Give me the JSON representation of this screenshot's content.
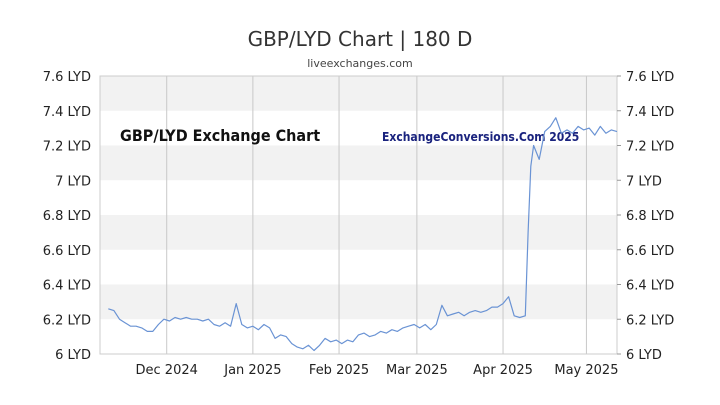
{
  "chart_data": {
    "type": "line",
    "title": "GBP/LYD Chart | 180 D",
    "subtitle": "liveexchanges.com",
    "inner_title": "GBP/LYD Exchange Chart",
    "watermark": "ExchangeConversions.Com 2025",
    "ylim": [
      6.0,
      7.6
    ],
    "y_ticks": [
      {
        "value": 7.6,
        "label": "7.6 LYD"
      },
      {
        "value": 7.4,
        "label": "7.4 LYD"
      },
      {
        "value": 7.2,
        "label": "7.2 LYD"
      },
      {
        "value": 7.0,
        "label": "7 LYD"
      },
      {
        "value": 6.8,
        "label": "6.8 LYD"
      },
      {
        "value": 6.6,
        "label": "6.6 LYD"
      },
      {
        "value": 6.4,
        "label": "6.4 LYD"
      },
      {
        "value": 6.2,
        "label": "6.2 LYD"
      },
      {
        "value": 6.0,
        "label": "6 LYD"
      }
    ],
    "x_range": [
      "2024-11-07",
      "2025-05-12"
    ],
    "x_ticks": [
      {
        "date": "2024-12-01",
        "label": "Dec 2024"
      },
      {
        "date": "2025-01-01",
        "label": "Jan 2025"
      },
      {
        "date": "2025-02-01",
        "label": "Feb 2025"
      },
      {
        "date": "2025-03-01",
        "label": "Mar 2025"
      },
      {
        "date": "2025-04-01",
        "label": "Apr 2025"
      },
      {
        "date": "2025-05-01",
        "label": "May 2025"
      }
    ],
    "grid": true,
    "line_color": "#6a93d4",
    "band_color": "#f2f2f2",
    "series": [
      {
        "values": [
          [
            "2024-11-10",
            6.26
          ],
          [
            "2024-11-12",
            6.25
          ],
          [
            "2024-11-14",
            6.2
          ],
          [
            "2024-11-16",
            6.18
          ],
          [
            "2024-11-18",
            6.16
          ],
          [
            "2024-11-20",
            6.16
          ],
          [
            "2024-11-22",
            6.15
          ],
          [
            "2024-11-24",
            6.13
          ],
          [
            "2024-11-26",
            6.13
          ],
          [
            "2024-11-28",
            6.17
          ],
          [
            "2024-11-30",
            6.2
          ],
          [
            "2024-12-02",
            6.19
          ],
          [
            "2024-12-04",
            6.21
          ],
          [
            "2024-12-06",
            6.2
          ],
          [
            "2024-12-08",
            6.21
          ],
          [
            "2024-12-10",
            6.2
          ],
          [
            "2024-12-12",
            6.2
          ],
          [
            "2024-12-14",
            6.19
          ],
          [
            "2024-12-16",
            6.2
          ],
          [
            "2024-12-18",
            6.17
          ],
          [
            "2024-12-20",
            6.16
          ],
          [
            "2024-12-22",
            6.18
          ],
          [
            "2024-12-24",
            6.16
          ],
          [
            "2024-12-26",
            6.29
          ],
          [
            "2024-12-28",
            6.17
          ],
          [
            "2024-12-30",
            6.15
          ],
          [
            "2025-01-01",
            6.16
          ],
          [
            "2025-01-03",
            6.14
          ],
          [
            "2025-01-05",
            6.17
          ],
          [
            "2025-01-07",
            6.15
          ],
          [
            "2025-01-09",
            6.09
          ],
          [
            "2025-01-11",
            6.11
          ],
          [
            "2025-01-13",
            6.1
          ],
          [
            "2025-01-15",
            6.06
          ],
          [
            "2025-01-17",
            6.04
          ],
          [
            "2025-01-19",
            6.03
          ],
          [
            "2025-01-21",
            6.05
          ],
          [
            "2025-01-23",
            6.02
          ],
          [
            "2025-01-25",
            6.05
          ],
          [
            "2025-01-27",
            6.09
          ],
          [
            "2025-01-29",
            6.07
          ],
          [
            "2025-01-31",
            6.08
          ],
          [
            "2025-02-02",
            6.06
          ],
          [
            "2025-02-04",
            6.08
          ],
          [
            "2025-02-06",
            6.07
          ],
          [
            "2025-02-08",
            6.11
          ],
          [
            "2025-02-10",
            6.12
          ],
          [
            "2025-02-12",
            6.1
          ],
          [
            "2025-02-14",
            6.11
          ],
          [
            "2025-02-16",
            6.13
          ],
          [
            "2025-02-18",
            6.12
          ],
          [
            "2025-02-20",
            6.14
          ],
          [
            "2025-02-22",
            6.13
          ],
          [
            "2025-02-24",
            6.15
          ],
          [
            "2025-02-26",
            6.16
          ],
          [
            "2025-02-28",
            6.17
          ],
          [
            "2025-03-02",
            6.15
          ],
          [
            "2025-03-04",
            6.17
          ],
          [
            "2025-03-06",
            6.14
          ],
          [
            "2025-03-08",
            6.17
          ],
          [
            "2025-03-10",
            6.28
          ],
          [
            "2025-03-12",
            6.22
          ],
          [
            "2025-03-14",
            6.23
          ],
          [
            "2025-03-16",
            6.24
          ],
          [
            "2025-03-18",
            6.22
          ],
          [
            "2025-03-20",
            6.24
          ],
          [
            "2025-03-22",
            6.25
          ],
          [
            "2025-03-24",
            6.24
          ],
          [
            "2025-03-26",
            6.25
          ],
          [
            "2025-03-28",
            6.27
          ],
          [
            "2025-03-30",
            6.27
          ],
          [
            "2025-04-01",
            6.29
          ],
          [
            "2025-04-03",
            6.33
          ],
          [
            "2025-04-05",
            6.22
          ],
          [
            "2025-04-07",
            6.21
          ],
          [
            "2025-04-09",
            6.22
          ],
          [
            "2025-04-10",
            6.7
          ],
          [
            "2025-04-11",
            7.08
          ],
          [
            "2025-04-12",
            7.2
          ],
          [
            "2025-04-14",
            7.12
          ],
          [
            "2025-04-16",
            7.28
          ],
          [
            "2025-04-18",
            7.31
          ],
          [
            "2025-04-20",
            7.36
          ],
          [
            "2025-04-22",
            7.27
          ],
          [
            "2025-04-24",
            7.29
          ],
          [
            "2025-04-26",
            7.27
          ],
          [
            "2025-04-28",
            7.31
          ],
          [
            "2025-04-30",
            7.29
          ],
          [
            "2025-05-02",
            7.3
          ],
          [
            "2025-05-04",
            7.26
          ],
          [
            "2025-05-06",
            7.31
          ],
          [
            "2025-05-08",
            7.27
          ],
          [
            "2025-05-10",
            7.29
          ],
          [
            "2025-05-12",
            7.28
          ]
        ]
      }
    ]
  }
}
